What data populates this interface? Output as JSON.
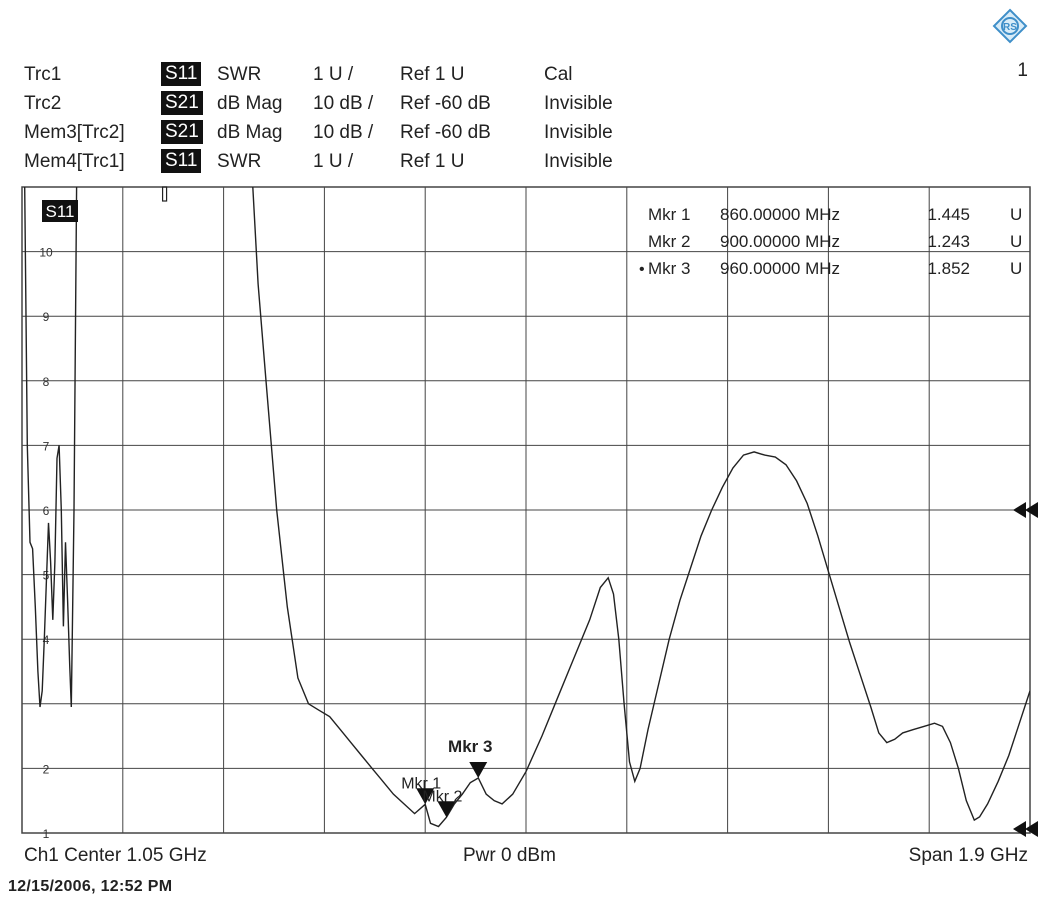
{
  "header": {
    "traces": [
      {
        "name": "Trc1",
        "param": "S11",
        "format": "SWR",
        "scale": "1 U /",
        "ref": "Ref 1 U",
        "state": "Cal"
      },
      {
        "name": "Trc2",
        "param": "S21",
        "format": "dB Mag",
        "scale": "10 dB /",
        "ref": "Ref -60 dB",
        "state": "Invisible"
      },
      {
        "name": "Mem3[Trc2]",
        "param": "S21",
        "format": "dB Mag",
        "scale": "10 dB /",
        "ref": "Ref -60 dB",
        "state": "Invisible"
      },
      {
        "name": "Mem4[Trc1]",
        "param": "S11",
        "format": "SWR",
        "scale": "1 U /",
        "ref": "Ref 1 U",
        "state": "Invisible"
      }
    ],
    "channel_number": "1",
    "logo_icon": "rohde-schwarz-diamond-icon"
  },
  "footer": {
    "left": "Ch1  Center  1.05 GHz",
    "center": "Pwr  0 dBm",
    "right": "Span  1.9 GHz",
    "datestamp": "12/15/2006, 12:52 PM"
  },
  "chart_data": {
    "type": "line",
    "trace_label": "S11",
    "xlabel": "",
    "ylabel": "",
    "x_unit": "GHz",
    "xlim": [
      0.1,
      2.0
    ],
    "ylim": [
      1,
      11
    ],
    "y_ticks": [
      1,
      2,
      3,
      4,
      5,
      6,
      7,
      8,
      9,
      10
    ],
    "y_tick_labels": [
      "1",
      "2",
      "",
      "4",
      "5",
      "6",
      "7",
      "8",
      "9",
      "10"
    ],
    "grid": true,
    "markers": [
      {
        "name": "Mkr 1",
        "freq": "860.00000 MHz",
        "value": "1.445",
        "unit": "U",
        "x": 0.86,
        "y": 1.445,
        "label": "Mkr 1",
        "active": false
      },
      {
        "name": "Mkr 2",
        "freq": "900.00000 MHz",
        "value": "1.243",
        "unit": "U",
        "x": 0.9,
        "y": 1.243,
        "label": "Mkr 2",
        "active": false
      },
      {
        "name": "Mkr 3",
        "freq": "960.00000 MHz",
        "value": "1.852",
        "unit": "U",
        "x": 0.96,
        "y": 1.852,
        "label": "Mkr 3",
        "active": true
      }
    ],
    "series": [
      {
        "values": [
          [
            0.105,
            11.0
          ],
          [
            0.11,
            7.0
          ],
          [
            0.115,
            5.5
          ],
          [
            0.12,
            5.4
          ],
          [
            0.125,
            4.5
          ],
          [
            0.13,
            3.5
          ],
          [
            0.134,
            2.95
          ],
          [
            0.138,
            3.2
          ],
          [
            0.142,
            4.0
          ],
          [
            0.146,
            4.9
          ],
          [
            0.15,
            5.8
          ],
          [
            0.154,
            5.2
          ],
          [
            0.158,
            4.3
          ],
          [
            0.162,
            5.2
          ],
          [
            0.166,
            6.8
          ],
          [
            0.17,
            7.0
          ],
          [
            0.174,
            6.0
          ],
          [
            0.178,
            4.2
          ],
          [
            0.182,
            5.5
          ],
          [
            0.186,
            4.6
          ],
          [
            0.19,
            3.6
          ],
          [
            0.193,
            2.95
          ],
          [
            0.198,
            6.0
          ],
          [
            0.203,
            11.0
          ],
          [
            0.535,
            11.0
          ],
          [
            0.545,
            9.5
          ],
          [
            0.56,
            8.0
          ],
          [
            0.58,
            6.0
          ],
          [
            0.6,
            4.5
          ],
          [
            0.62,
            3.4
          ],
          [
            0.64,
            3.0
          ],
          [
            0.66,
            2.9
          ],
          [
            0.68,
            2.8
          ],
          [
            0.7,
            2.6
          ],
          [
            0.72,
            2.4
          ],
          [
            0.74,
            2.2
          ],
          [
            0.76,
            2.0
          ],
          [
            0.78,
            1.8
          ],
          [
            0.8,
            1.6
          ],
          [
            0.82,
            1.45
          ],
          [
            0.84,
            1.3
          ],
          [
            0.86,
            1.445
          ],
          [
            0.87,
            1.15
          ],
          [
            0.885,
            1.1
          ],
          [
            0.9,
            1.243
          ],
          [
            0.915,
            1.45
          ],
          [
            0.93,
            1.6
          ],
          [
            0.945,
            1.78
          ],
          [
            0.96,
            1.852
          ],
          [
            0.975,
            1.6
          ],
          [
            0.99,
            1.5
          ],
          [
            1.005,
            1.45
          ],
          [
            1.025,
            1.6
          ],
          [
            1.05,
            1.95
          ],
          [
            1.08,
            2.5
          ],
          [
            1.11,
            3.1
          ],
          [
            1.14,
            3.7
          ],
          [
            1.17,
            4.3
          ],
          [
            1.19,
            4.8
          ],
          [
            1.205,
            4.95
          ],
          [
            1.215,
            4.7
          ],
          [
            1.225,
            4.0
          ],
          [
            1.235,
            3.0
          ],
          [
            1.245,
            2.1
          ],
          [
            1.255,
            1.8
          ],
          [
            1.265,
            2.0
          ],
          [
            1.28,
            2.6
          ],
          [
            1.3,
            3.3
          ],
          [
            1.32,
            4.0
          ],
          [
            1.34,
            4.6
          ],
          [
            1.36,
            5.1
          ],
          [
            1.38,
            5.6
          ],
          [
            1.4,
            6.0
          ],
          [
            1.42,
            6.35
          ],
          [
            1.44,
            6.65
          ],
          [
            1.46,
            6.85
          ],
          [
            1.48,
            6.9
          ],
          [
            1.5,
            6.85
          ],
          [
            1.52,
            6.82
          ],
          [
            1.54,
            6.7
          ],
          [
            1.56,
            6.45
          ],
          [
            1.58,
            6.1
          ],
          [
            1.6,
            5.6
          ],
          [
            1.62,
            5.05
          ],
          [
            1.64,
            4.5
          ],
          [
            1.66,
            3.95
          ],
          [
            1.68,
            3.45
          ],
          [
            1.7,
            2.95
          ],
          [
            1.715,
            2.55
          ],
          [
            1.73,
            2.4
          ],
          [
            1.745,
            2.45
          ],
          [
            1.76,
            2.55
          ],
          [
            1.78,
            2.6
          ],
          [
            1.8,
            2.65
          ],
          [
            1.82,
            2.7
          ],
          [
            1.835,
            2.65
          ],
          [
            1.85,
            2.4
          ],
          [
            1.865,
            2.0
          ],
          [
            1.88,
            1.5
          ],
          [
            1.895,
            1.2
          ],
          [
            1.905,
            1.25
          ],
          [
            1.92,
            1.45
          ],
          [
            1.94,
            1.8
          ],
          [
            1.96,
            2.2
          ],
          [
            1.98,
            2.7
          ],
          [
            2.0,
            3.2
          ]
        ]
      }
    ]
  }
}
